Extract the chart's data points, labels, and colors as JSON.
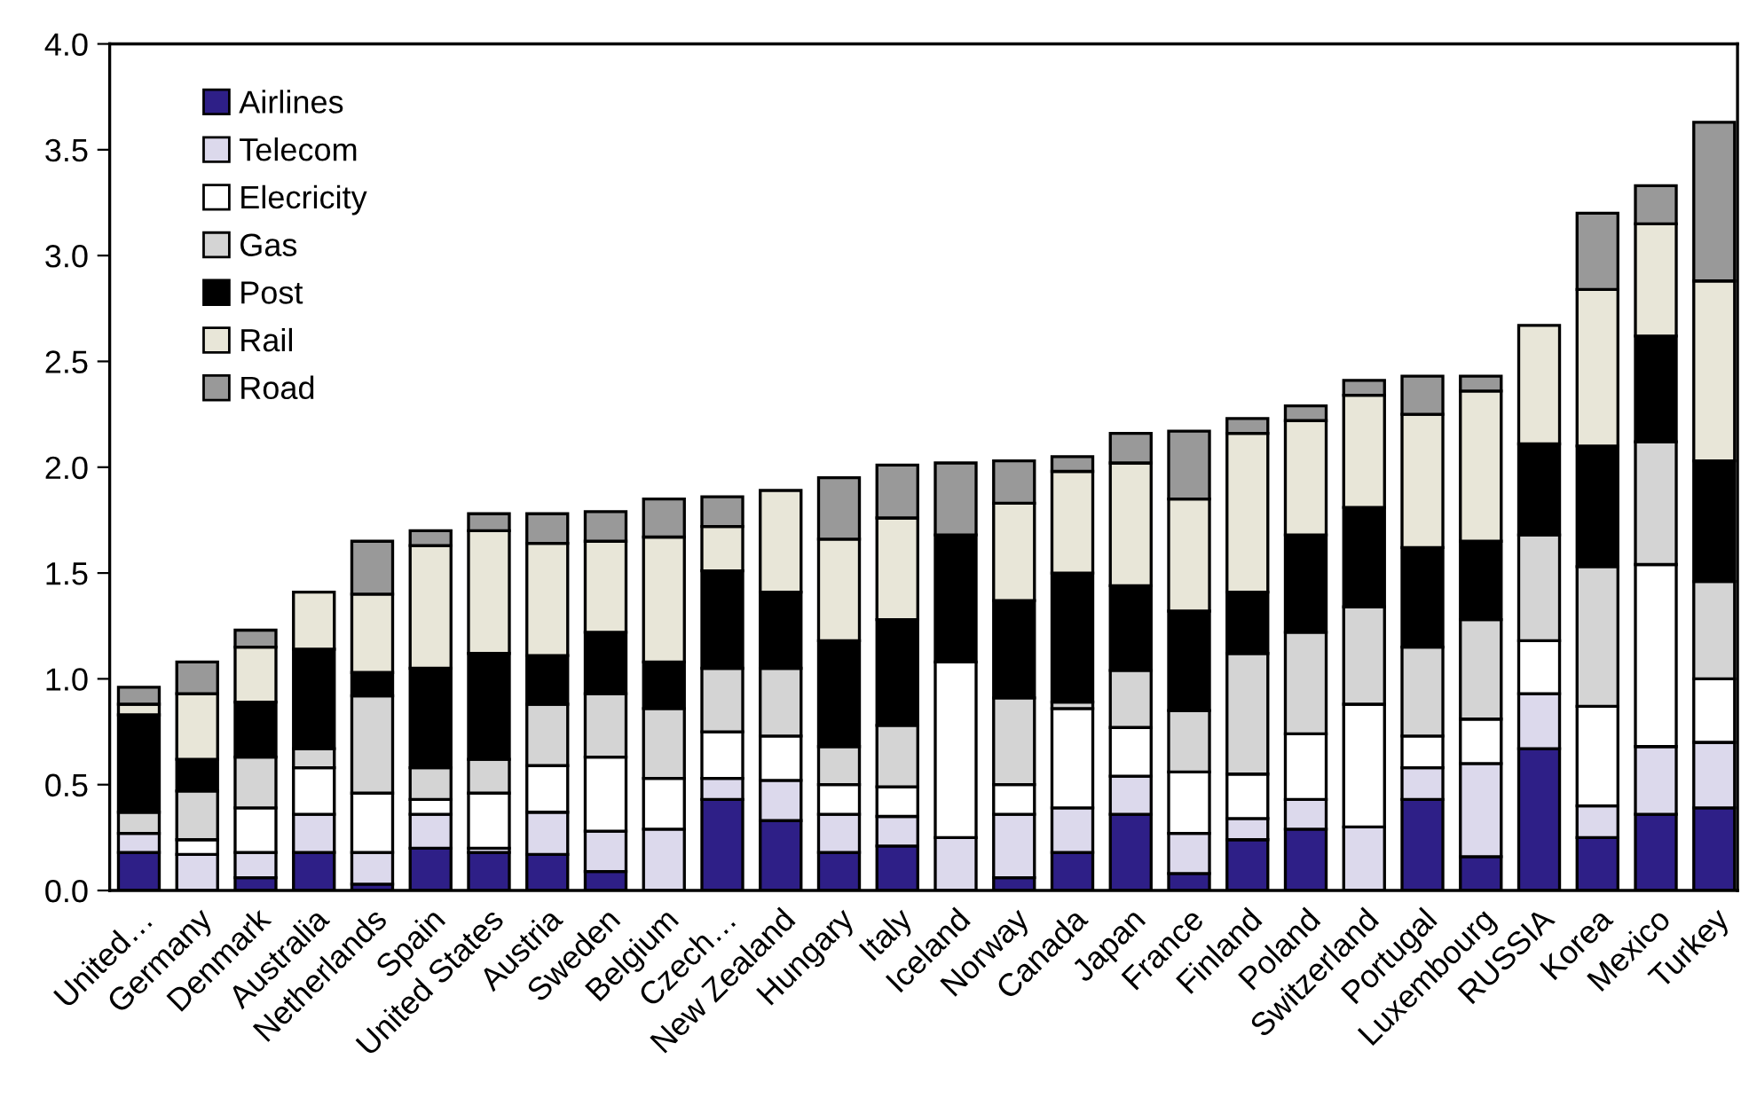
{
  "chart_data": {
    "type": "bar",
    "stacked": true,
    "legend": "top left",
    "grid": false,
    "categories": [
      "United…",
      "Germany",
      "Denmark",
      "Australia",
      "Netherlands",
      "Spain",
      "United States",
      "Austria",
      "Sweden",
      "Belgium",
      "Czech…",
      "New Zealand",
      "Hungary",
      "Italy",
      "Iceland",
      "Norway",
      "Canada",
      "Japan",
      "France",
      "Finland",
      "Poland",
      "Switzerland",
      "Portugal",
      "Luxembourg",
      "RUSSIA",
      "Korea",
      "Mexico",
      "Turkey"
    ],
    "ylim": [
      0,
      4
    ],
    "yticks": [
      {
        "value": 0,
        "label": "0.0"
      },
      {
        "value": 0.5,
        "label": "0.5"
      },
      {
        "value": 1,
        "label": "1.0"
      },
      {
        "value": 1.5,
        "label": "1.5"
      },
      {
        "value": 2,
        "label": "2.0"
      },
      {
        "value": 2.5,
        "label": "2.5"
      },
      {
        "value": 3,
        "label": "3.0"
      },
      {
        "value": 3.5,
        "label": "3.5"
      },
      {
        "value": 4,
        "label": "4.0"
      }
    ],
    "series": [
      {
        "name": "Airlines",
        "color": "#2e1f87",
        "values": [
          0.18,
          0,
          0.06,
          0.18,
          0.03,
          0.2,
          0.18,
          0.17,
          0.09,
          0,
          0.43,
          0.33,
          0.18,
          0.21,
          0,
          0.06,
          0.18,
          0.36,
          0.08,
          0.24,
          0.29,
          0,
          0.43,
          0.16,
          0.67,
          0.25,
          0.36,
          0.39
        ]
      },
      {
        "name": "Telecom",
        "color": "#dcd9ec",
        "values": [
          0.09,
          0.17,
          0.12,
          0.18,
          0.15,
          0.16,
          0.02,
          0.2,
          0.19,
          0.29,
          0.1,
          0.19,
          0.18,
          0.14,
          0.25,
          0.3,
          0.21,
          0.18,
          0.19,
          0.1,
          0.14,
          0.3,
          0.15,
          0.44,
          0.26,
          0.15,
          0.32,
          0.31
        ]
      },
      {
        "name": "Elecricity",
        "color": "#ffffff",
        "values": [
          0,
          0.07,
          0.21,
          0.22,
          0.28,
          0.07,
          0.26,
          0.22,
          0.35,
          0.24,
          0.22,
          0.21,
          0.14,
          0.14,
          0.83,
          0.14,
          0.47,
          0.23,
          0.29,
          0.21,
          0.31,
          0.58,
          0.15,
          0.21,
          0.25,
          0.47,
          0.86,
          0.3
        ]
      },
      {
        "name": "Gas",
        "color": "#d4d4d4",
        "values": [
          0.1,
          0.23,
          0.24,
          0.09,
          0.46,
          0.15,
          0.16,
          0.29,
          0.3,
          0.33,
          0.3,
          0.32,
          0.18,
          0.29,
          0,
          0.41,
          0.03,
          0.27,
          0.29,
          0.57,
          0.48,
          0.46,
          0.42,
          0.47,
          0.5,
          0.66,
          0.58,
          0.46
        ]
      },
      {
        "name": "Post",
        "color": "#000000",
        "values": [
          0.46,
          0.15,
          0.26,
          0.47,
          0.11,
          0.47,
          0.5,
          0.23,
          0.29,
          0.22,
          0.46,
          0.36,
          0.5,
          0.5,
          0.6,
          0.46,
          0.61,
          0.4,
          0.47,
          0.29,
          0.46,
          0.47,
          0.47,
          0.37,
          0.43,
          0.57,
          0.5,
          0.57
        ]
      },
      {
        "name": "Rail",
        "color": "#e8e6d8",
        "values": [
          0.05,
          0.31,
          0.26,
          0.27,
          0.37,
          0.58,
          0.58,
          0.53,
          0.43,
          0.59,
          0.21,
          0.48,
          0.48,
          0.48,
          0,
          0.46,
          0.48,
          0.58,
          0.53,
          0.75,
          0.54,
          0.53,
          0.63,
          0.71,
          0.56,
          0.74,
          0.53,
          0.85
        ]
      },
      {
        "name": "Road",
        "color": "#999999",
        "values": [
          0.08,
          0.15,
          0.08,
          0,
          0.25,
          0.07,
          0.08,
          0.14,
          0.14,
          0.18,
          0.14,
          0,
          0.29,
          0.25,
          0.34,
          0.2,
          0.07,
          0.14,
          0.32,
          0.07,
          0.07,
          0.07,
          0.18,
          0.07,
          0,
          0.36,
          0.18,
          0.75
        ]
      }
    ]
  }
}
